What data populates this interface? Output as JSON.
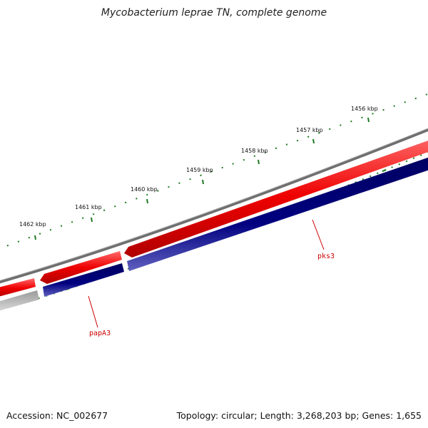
{
  "title": "Mycobacterium leprae TN, complete genome",
  "footer": {
    "accession": "Accession: NC_002677",
    "summary": "Topology: circular; Length: 3,268,203 bp; Genes: 1,655"
  },
  "ruler_labels": [
    "1462 kbp",
    "1461 kbp",
    "1460 kbp",
    "1459 kbp",
    "1458 kbp",
    "1457 kbp",
    "1456 kbp"
  ],
  "gene_labels": [
    "papA3",
    "pks3"
  ],
  "colors": {
    "backbone": "#7a7a7a",
    "forward_cds": "#ee0000",
    "reverse_cds": "#000080",
    "gray_feature": "#c4c4c4",
    "ticks": "#1f7a1f",
    "gene_label": "#cc0000"
  }
}
